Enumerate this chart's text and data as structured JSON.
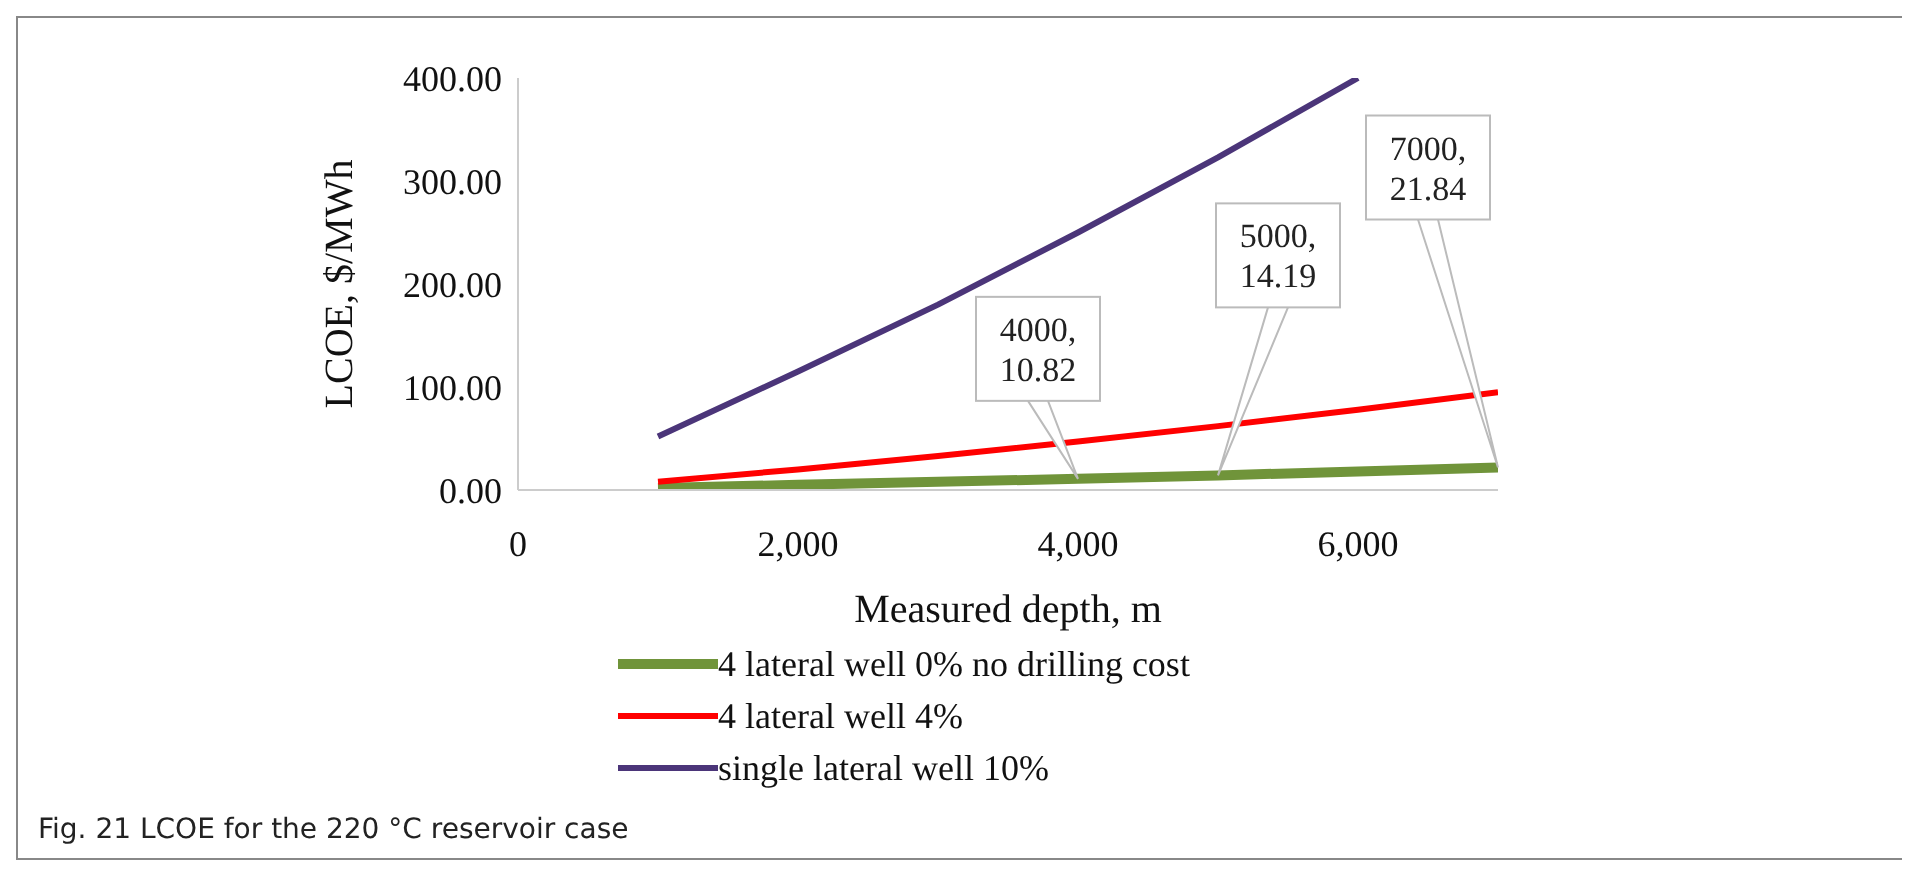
{
  "chart_data": {
    "type": "line",
    "xlabel": "Measured depth, m",
    "ylabel": "LCOE,  $/MWh",
    "x": [
      1000,
      2000,
      3000,
      4000,
      5000,
      6000,
      7000
    ],
    "series": [
      {
        "name": "4 lateral well 0% no drilling cost",
        "color": "#70943a",
        "values": [
          2,
          5,
          8,
          10.82,
          14.19,
          18,
          21.84
        ]
      },
      {
        "name": "4 lateral well 4%",
        "color": "#ff0000",
        "values": [
          8,
          20,
          33,
          47,
          62,
          78,
          95
        ]
      },
      {
        "name": "single lateral well 10%",
        "color": "#4b3579",
        "values": [
          52,
          115,
          180,
          250,
          323,
          400,
          null
        ]
      }
    ],
    "xlim": [
      0,
      7000
    ],
    "xticks": [
      0,
      {
        "value": 2000,
        "label": "2,000"
      },
      {
        "value": 4000,
        "label": "4,000"
      },
      {
        "value": 6000,
        "label": "6,000"
      }
    ],
    "ylim": [
      0,
      400
    ],
    "yticks": [
      {
        "value": 0,
        "label": "0.00"
      },
      {
        "value": 100,
        "label": "100.00"
      },
      {
        "value": 200,
        "label": "200.00"
      },
      {
        "value": 300,
        "label": "300.00"
      },
      {
        "value": 400,
        "label": "400.00"
      }
    ],
    "annotations": [
      {
        "text": "4000,\n10.82",
        "x": 4000,
        "y": 10.82
      },
      {
        "text": "5000,\n14.19",
        "x": 5000,
        "y": 14.19
      },
      {
        "text": "7000,\n21.84",
        "x": 7000,
        "y": 21.84
      },
      "Fig. 21  LCOE for the 220 °C reservoir case"
    ],
    "grid": false,
    "legend": "bottom",
    "marker": "none",
    "line_style": "solid"
  }
}
